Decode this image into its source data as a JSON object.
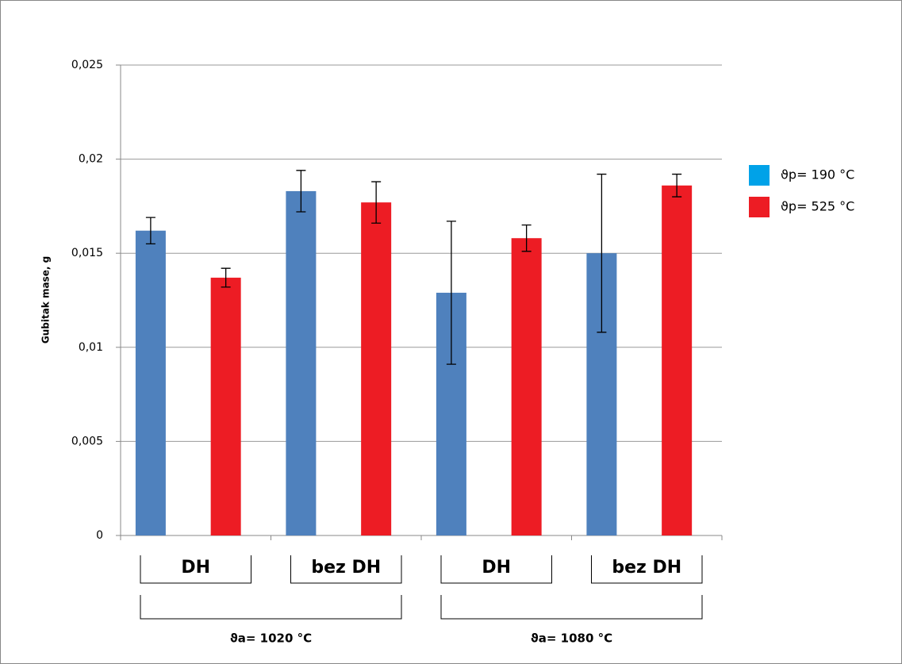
{
  "chart_data": {
    "type": "bar",
    "y_label": "Gubitak mase, g",
    "categories": [
      "DH",
      "bez DH",
      "DH",
      "bez DH"
    ],
    "group_labels": [
      "ϑa= 1020 °C",
      "ϑa= 1080 °C"
    ],
    "series": [
      {
        "name": "ϑp= 190 °C",
        "color": "#4f81bd",
        "legend_color": "#00a2e8",
        "values": [
          0.0162,
          0.0183,
          0.0129,
          0.015
        ],
        "errors": [
          0.0007,
          0.0011,
          0.0038,
          0.0042
        ]
      },
      {
        "name": "ϑp= 525 °C",
        "color": "#ed1c24",
        "legend_color": "#ed1c24",
        "values": [
          0.0137,
          0.0177,
          0.0158,
          0.0186
        ],
        "errors": [
          0.0005,
          0.0011,
          0.0007,
          0.0006
        ]
      }
    ],
    "ylim": [
      0,
      0.025
    ],
    "yticks": [
      0,
      {
        "value": 0.005,
        "label": "0,005"
      },
      {
        "value": 0.01,
        "label": "0,01"
      },
      {
        "value": 0.015,
        "label": "0,015"
      },
      {
        "value": 0.02,
        "label": "0,02"
      },
      {
        "value": 0.025,
        "label": "0,025"
      }
    ],
    "grid": true
  }
}
